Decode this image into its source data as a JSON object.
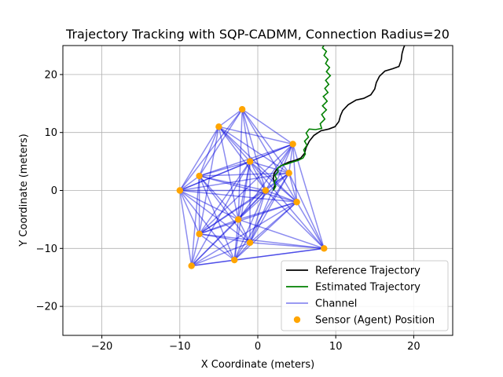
{
  "chart_data": {
    "type": "line",
    "title": "Trajectory Tracking with SQP-CADMM, Connection Radius=20",
    "xlabel": "X Coordinate (meters)",
    "ylabel": "Y Coordinate (meters)",
    "xlim": [
      -25,
      25
    ],
    "ylim": [
      -25,
      25
    ],
    "xticks": [
      -20,
      -10,
      0,
      10,
      20
    ],
    "yticks": [
      -20,
      -10,
      0,
      10,
      20
    ],
    "xtick_labels": [
      "−20",
      "−10",
      "0",
      "10",
      "20"
    ],
    "ytick_labels": [
      "−20",
      "−10",
      "0",
      "10",
      "20"
    ],
    "grid": true,
    "legend": {
      "placement": "lower-right",
      "entries": [
        {
          "label": "Reference Trajectory",
          "type": "line",
          "color": "#000000"
        },
        {
          "label": "Estimated Trajectory",
          "type": "line",
          "color": "#008000"
        },
        {
          "label": "Channel",
          "type": "line",
          "color": "#0000dd"
        },
        {
          "label": "Sensor (Agent) Position",
          "type": "marker",
          "color": "#ffa500"
        }
      ]
    },
    "colors": {
      "reference": "#000000",
      "estimated": "#008000",
      "channel": "#0000dd",
      "sensor": "#ffa500"
    },
    "sensors": [
      [
        -2,
        14
      ],
      [
        -5,
        11
      ],
      [
        4.5,
        8
      ],
      [
        -1,
        5
      ],
      [
        4,
        3
      ],
      [
        -7.5,
        2.5
      ],
      [
        -10,
        0
      ],
      [
        1,
        0
      ],
      [
        5,
        -2
      ],
      [
        -2.5,
        -5
      ],
      [
        -7.5,
        -7.5
      ],
      [
        -1,
        -9
      ],
      [
        -3,
        -12
      ],
      [
        8.5,
        -10
      ],
      [
        -8.5,
        -13
      ]
    ],
    "reference_trajectory": [
      [
        2.0,
        0.0
      ],
      [
        2.2,
        1.0
      ],
      [
        2.0,
        2.0
      ],
      [
        2.1,
        3.0
      ],
      [
        2.5,
        3.8
      ],
      [
        3.2,
        4.4
      ],
      [
        4.0,
        4.9
      ],
      [
        4.8,
        5.2
      ],
      [
        5.5,
        5.6
      ],
      [
        6.0,
        6.4
      ],
      [
        6.2,
        7.4
      ],
      [
        6.6,
        8.5
      ],
      [
        7.2,
        9.5
      ],
      [
        8.1,
        10.3
      ],
      [
        9.1,
        10.6
      ],
      [
        9.9,
        11.0
      ],
      [
        10.4,
        11.9
      ],
      [
        10.6,
        12.9
      ],
      [
        10.9,
        13.8
      ],
      [
        11.6,
        14.8
      ],
      [
        12.6,
        15.6
      ],
      [
        13.6,
        15.9
      ],
      [
        14.5,
        16.5
      ],
      [
        15.0,
        17.5
      ],
      [
        15.2,
        18.6
      ],
      [
        15.6,
        19.7
      ],
      [
        16.3,
        20.6
      ],
      [
        17.3,
        21.0
      ],
      [
        18.1,
        21.4
      ],
      [
        18.4,
        22.5
      ],
      [
        18.5,
        23.6
      ],
      [
        18.7,
        24.6
      ],
      [
        19.0,
        25.5
      ]
    ],
    "estimated_trajectory": [
      [
        2.0,
        0.0
      ],
      [
        2.3,
        0.7
      ],
      [
        2.1,
        1.4
      ],
      [
        2.4,
        2.0
      ],
      [
        2.2,
        2.6
      ],
      [
        2.6,
        3.2
      ],
      [
        2.5,
        3.8
      ],
      [
        3.0,
        4.3
      ],
      [
        3.8,
        4.6
      ],
      [
        4.5,
        4.9
      ],
      [
        5.2,
        5.2
      ],
      [
        5.8,
        5.6
      ],
      [
        6.1,
        6.3
      ],
      [
        5.9,
        7.0
      ],
      [
        6.3,
        7.8
      ],
      [
        6.0,
        8.5
      ],
      [
        6.5,
        9.2
      ],
      [
        6.2,
        9.9
      ],
      [
        6.6,
        10.6
      ],
      [
        7.4,
        10.5
      ],
      [
        8.2,
        10.7
      ],
      [
        8.0,
        11.5
      ],
      [
        8.6,
        12.3
      ],
      [
        8.2,
        13.1
      ],
      [
        8.8,
        13.9
      ],
      [
        8.3,
        14.6
      ],
      [
        8.9,
        15.4
      ],
      [
        8.4,
        16.2
      ],
      [
        9.0,
        16.9
      ],
      [
        8.6,
        17.6
      ],
      [
        9.1,
        18.3
      ],
      [
        8.7,
        19.0
      ],
      [
        9.3,
        19.8
      ],
      [
        8.8,
        20.5
      ],
      [
        9.2,
        21.2
      ],
      [
        8.7,
        21.9
      ],
      [
        9.0,
        22.6
      ],
      [
        8.5,
        23.3
      ],
      [
        8.8,
        24.0
      ],
      [
        8.3,
        24.6
      ],
      [
        8.6,
        25.3
      ]
    ]
  }
}
